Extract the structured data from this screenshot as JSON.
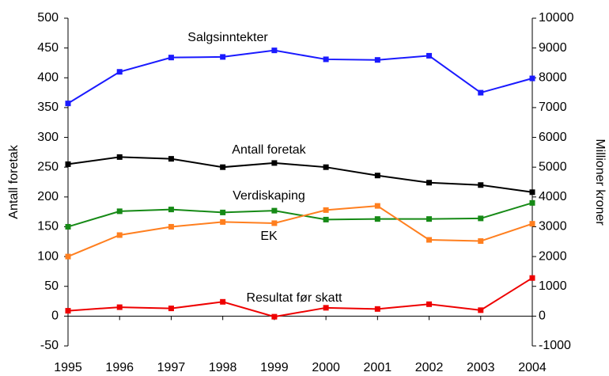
{
  "chart_data": {
    "type": "line",
    "y_label": "Antall foretak",
    "y2_label": "Millioner kroner",
    "categories": [
      "1995",
      "1996",
      "1997",
      "1998",
      "1999",
      "2000",
      "2001",
      "2002",
      "2003",
      "2004"
    ],
    "ylim": [
      -50,
      500
    ],
    "yticks": [
      -50,
      0,
      50,
      100,
      150,
      200,
      250,
      300,
      350,
      400,
      450,
      500
    ],
    "y2lim": [
      -1000,
      10000
    ],
    "y2ticks": [
      -1000,
      0,
      1000,
      2000,
      3000,
      4000,
      5000,
      6000,
      7000,
      8000,
      9000,
      10000
    ],
    "series": [
      {
        "name": "Salgsinntekter",
        "color": "#1a1aff",
        "axis": "y2",
        "values": [
          7140,
          8200,
          8680,
          8700,
          8920,
          8620,
          8600,
          8740,
          7500,
          7980
        ]
      },
      {
        "name": "Antall foretak",
        "color": "#000000",
        "values": [
          255,
          267,
          264,
          250,
          257,
          250,
          236,
          224,
          220,
          208
        ]
      },
      {
        "name": "Verdiskaping",
        "color": "#168a16",
        "axis": "y2",
        "values": [
          3000,
          3520,
          3580,
          3480,
          3540,
          3240,
          3260,
          3260,
          3280,
          3800
        ]
      },
      {
        "name": "EK",
        "color": "#ff7f1f",
        "axis": "y2",
        "values": [
          2000,
          2720,
          3000,
          3160,
          3120,
          3560,
          3700,
          2560,
          2520,
          3100
        ]
      },
      {
        "name": "Resultat før skatt",
        "color": "#ee0000",
        "axis": "y2",
        "values": [
          180,
          300,
          260,
          480,
          -20,
          280,
          240,
          400,
          200,
          1280
        ]
      }
    ]
  }
}
